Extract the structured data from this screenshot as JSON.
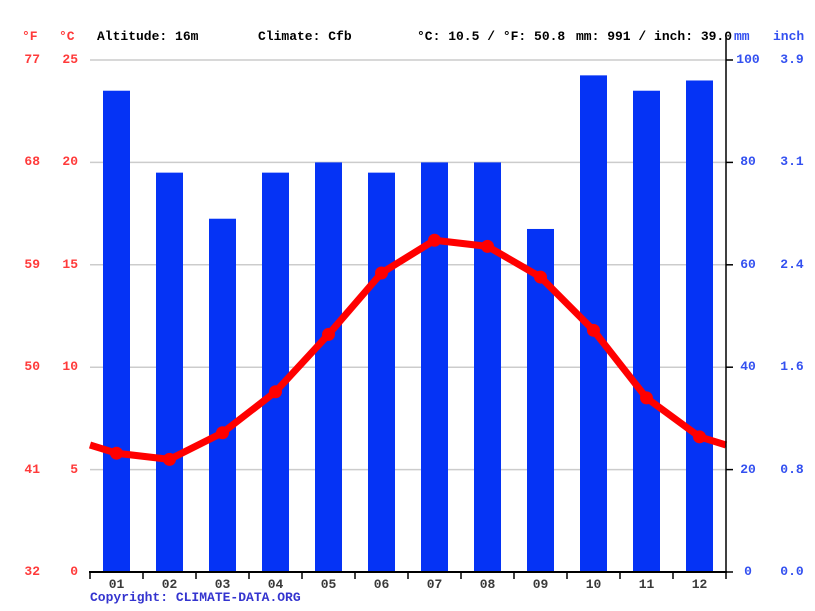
{
  "header": {
    "f_unit": "°F",
    "c_unit": "°C",
    "altitude": "Altitude: 16m",
    "climate": "Climate: Cfb",
    "temp_summary": "°C: 10.5 / °F: 50.8",
    "precip_summary": "mm: 991 / inch: 39.0",
    "mm_unit": "mm",
    "inch_unit": "inch"
  },
  "footer": {
    "copyright_label": "Copyright:",
    "site": "CLIMATE-DATA.ORG"
  },
  "colors": {
    "bar": "#0533f5",
    "line": "#ff0000",
    "red_label": "#ff3a3a",
    "blue_label": "#3350f0",
    "grid": "#cccccc",
    "axis": "#000000",
    "month_label": "#3a3a3a",
    "copyright": "#3434cf"
  },
  "chart_data": {
    "type": "combo",
    "categories": [
      "01",
      "02",
      "03",
      "04",
      "05",
      "06",
      "07",
      "08",
      "09",
      "10",
      "11",
      "12"
    ],
    "series": [
      {
        "name": "Precipitation",
        "type": "bar",
        "unit": "mm",
        "values": [
          94,
          78,
          69,
          78,
          80,
          78,
          80,
          80,
          67,
          97,
          94,
          96
        ],
        "total_mm": 991
      },
      {
        "name": "Temperature",
        "type": "line",
        "unit": "°C",
        "values": [
          5.8,
          5.5,
          6.8,
          8.8,
          11.6,
          14.6,
          16.2,
          15.9,
          14.4,
          11.8,
          8.5,
          6.6
        ],
        "edge_values": {
          "left": 6.2,
          "right": 6.2
        },
        "mean_c": 10.5
      }
    ],
    "axes": {
      "left_f_ticks": [
        "77",
        "68",
        "59",
        "50",
        "41",
        "32"
      ],
      "left_c_ticks": [
        "25",
        "20",
        "15",
        "10",
        "5",
        "0"
      ],
      "right_mm_ticks": [
        "100",
        "80",
        "60",
        "40",
        "20",
        "0"
      ],
      "right_inch_ticks": [
        "3.9",
        "3.1",
        "2.4",
        "1.6",
        "0.8",
        "0.0"
      ],
      "ylim_c": [
        0,
        25
      ],
      "ylim_mm": [
        0,
        100
      ]
    },
    "grid": true,
    "legend": "none"
  }
}
